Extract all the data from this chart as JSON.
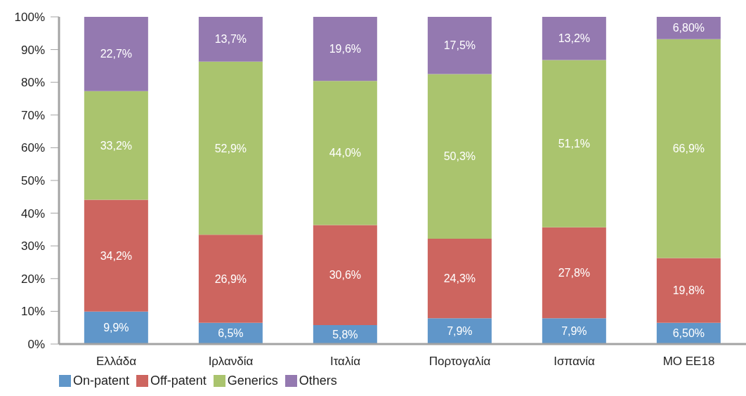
{
  "chart_data": {
    "type": "bar",
    "stacked": true,
    "legend": "bottom left",
    "categories": [
      "Ελλάδα",
      "Ιρλανδία",
      "Ιταλία",
      "Πορτογαλία",
      "Ισπανία",
      "ΜΟ ΕΕ18"
    ],
    "series": [
      {
        "name": "On-patent",
        "color": "#6096c9",
        "values": [
          9.9,
          6.5,
          5.8,
          7.9,
          7.9,
          6.5
        ],
        "value_labels": [
          "9,9%",
          "6,5%",
          "5,8%",
          "7,9%",
          "7,9%",
          "6,50%"
        ]
      },
      {
        "name": "Off-patent",
        "color": "#cd655f",
        "values": [
          34.2,
          26.9,
          30.6,
          24.3,
          27.8,
          19.8
        ],
        "value_labels": [
          "34,2%",
          "26,9%",
          "30,6%",
          "24,3%",
          "27,8%",
          "19,8%"
        ]
      },
      {
        "name": "Generics",
        "color": "#aac46e",
        "values": [
          33.2,
          52.9,
          44.0,
          50.3,
          51.1,
          66.9
        ],
        "value_labels": [
          "33,2%",
          "52,9%",
          "44,0%",
          "50,3%",
          "51,1%",
          "66,9%"
        ]
      },
      {
        "name": "Others",
        "color": "#9479b0",
        "values": [
          22.7,
          13.7,
          19.6,
          17.5,
          13.2,
          6.8
        ],
        "value_labels": [
          "22,7%",
          "13,7%",
          "19,6%",
          "17,5%",
          "13,2%",
          "6,80%"
        ]
      }
    ],
    "ylim": [
      0,
      100
    ],
    "yticks": [
      {
        "value": 0,
        "label": "0%"
      },
      {
        "value": 10,
        "label": "10%"
      },
      {
        "value": 20,
        "label": "20%"
      },
      {
        "value": 30,
        "label": "30%"
      },
      {
        "value": 40,
        "label": "40%"
      },
      {
        "value": 50,
        "label": "50%"
      },
      {
        "value": 60,
        "label": "60%"
      },
      {
        "value": 70,
        "label": "70%"
      },
      {
        "value": 80,
        "label": "80%"
      },
      {
        "value": 90,
        "label": "90%"
      },
      {
        "value": 100,
        "label": "100%"
      }
    ]
  }
}
